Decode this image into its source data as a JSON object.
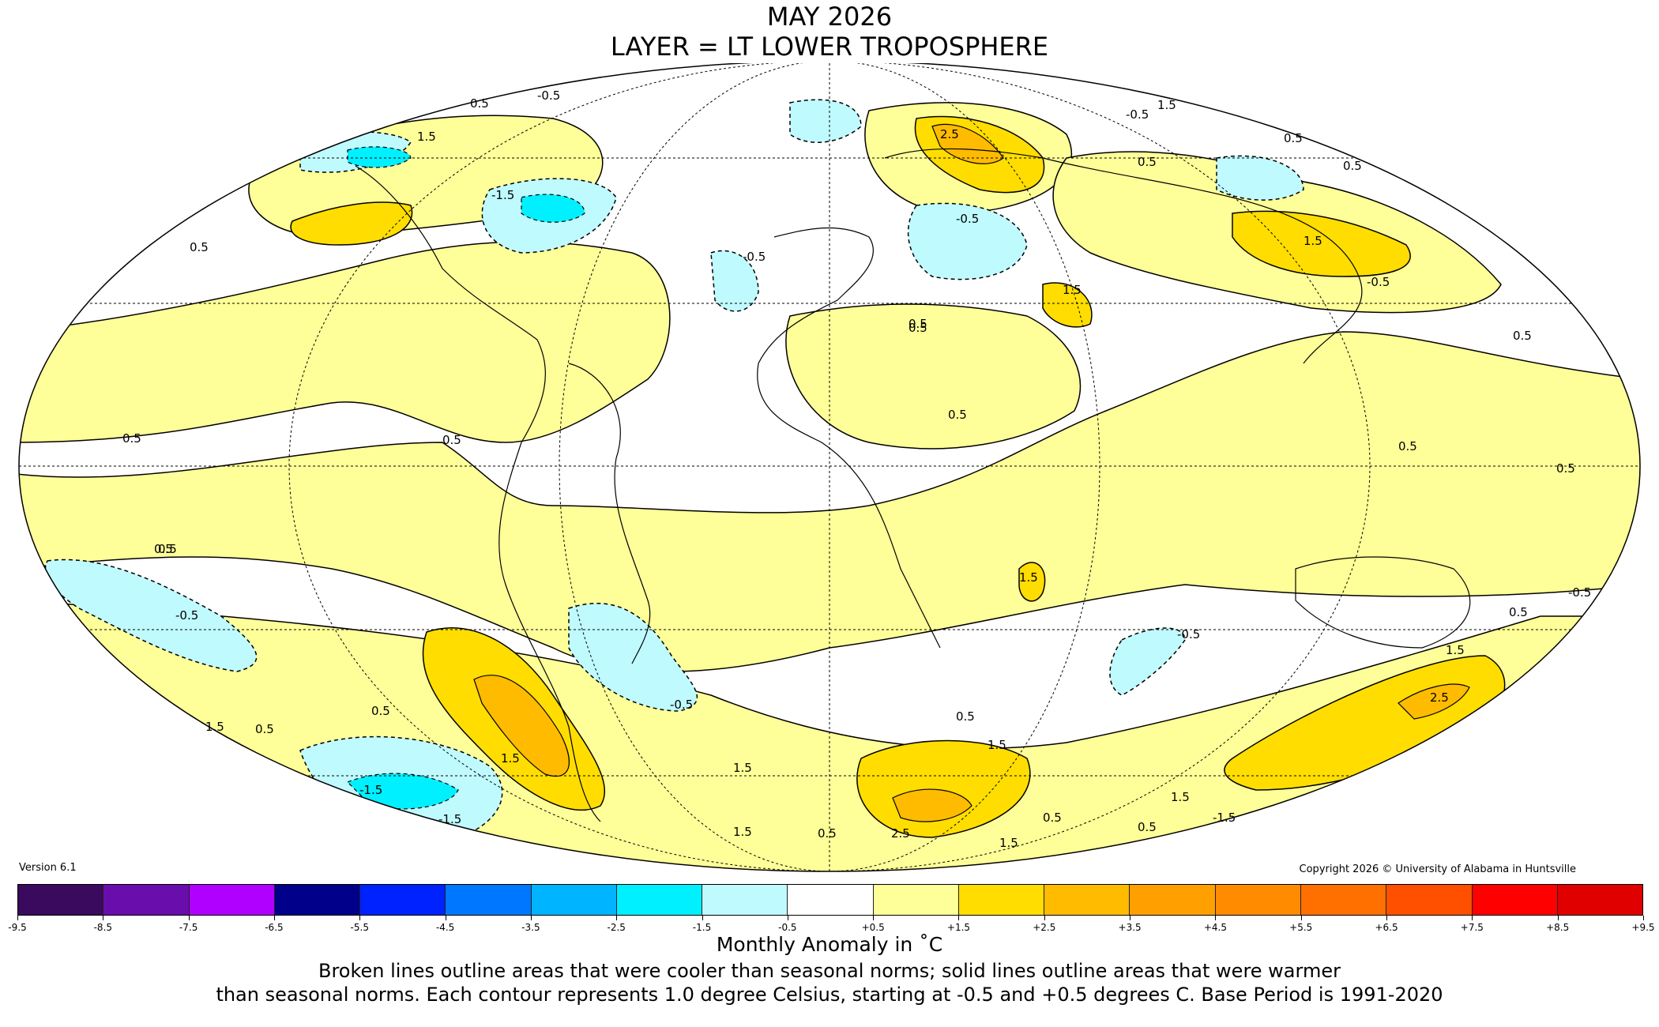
{
  "title_line1": "MAY 2026",
  "title_line2": "LAYER = LT LOWER TROPOSPHERE",
  "version": "Version 6.1",
  "copyright": "Copyright 2026 © University of Alabama in Huntsville",
  "colorbar": {
    "unit_label": "Monthly Anomaly in ˚C",
    "boundaries": [
      "-9.5",
      "-8.5",
      "-7.5",
      "-6.5",
      "-5.5",
      "-4.5",
      "-3.5",
      "-2.5",
      "-1.5",
      "-0.5",
      "+0.5",
      "+1.5",
      "+2.5",
      "+3.5",
      "+4.5",
      "+5.5",
      "+6.5",
      "+7.5",
      "+8.5",
      "+9.5"
    ],
    "colors": [
      "#3a0a5e",
      "#6a0dad",
      "#b000ff",
      "#00008b",
      "#0022ff",
      "#0077ff",
      "#00b4ff",
      "#00f0ff",
      "#bffaff",
      "#ffffff",
      "#ffff99",
      "#ffdd00",
      "#ffbb00",
      "#ffa000",
      "#ff8c00",
      "#ff7000",
      "#ff5000",
      "#ff0000",
      "#e00000"
    ]
  },
  "note_line1": "Broken lines outline areas that were cooler than seasonal norms; solid lines outline areas that were warmer",
  "note_line2": "than seasonal norms. Each contour represents 1.0 degree Celsius, starting at -0.5 and +0.5 degrees C. Base Period is 1991-2020",
  "contour_labels": [
    "0.5",
    "-0.5",
    "1.5",
    "-1.5",
    "2.5"
  ],
  "colors": {
    "warm1": "#ffff99",
    "warm2": "#ffdd00",
    "warm3": "#ffbb00",
    "cool1": "#bffaff",
    "cool2": "#00f0ff",
    "background": "#ffffff"
  }
}
